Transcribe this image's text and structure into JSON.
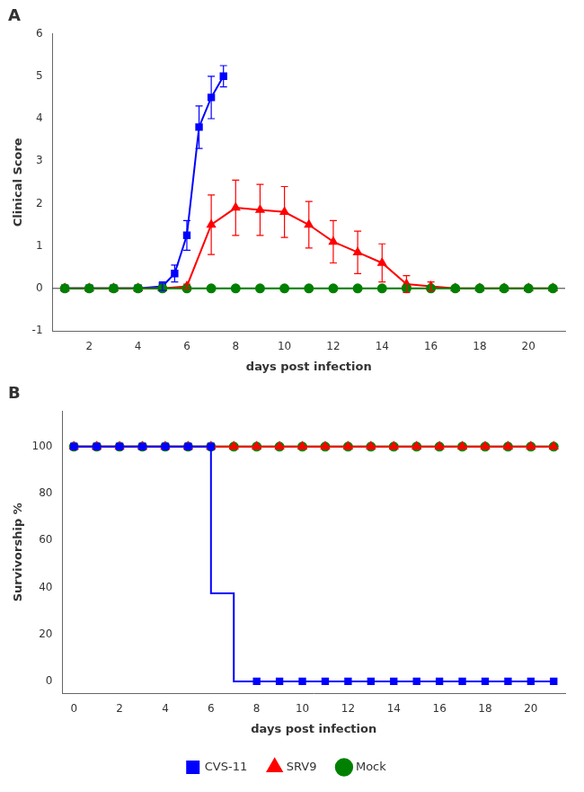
{
  "chart_data": [
    {
      "type": "line",
      "title": "A",
      "x_label": "days post infection",
      "y_label": "Clinical Score",
      "xlim": [
        0.5,
        21.5
      ],
      "ylim": [
        -1,
        6
      ],
      "xticks": [
        2,
        4,
        6,
        8,
        10,
        12,
        14,
        16,
        18,
        20
      ],
      "yticks": [
        -1,
        0,
        1,
        2,
        3,
        4,
        5,
        6
      ],
      "grid": false,
      "hlines": [
        {
          "y": 0,
          "color": "#000000"
        }
      ],
      "series": [
        {
          "name": "Mock",
          "color": "#008000",
          "marker": "circle",
          "x": [
            1,
            2,
            3,
            4,
            5,
            6,
            7,
            8,
            9,
            10,
            11,
            12,
            13,
            14,
            15,
            16,
            17,
            18,
            19,
            20,
            21
          ],
          "values": [
            0,
            0,
            0,
            0,
            0,
            0,
            0,
            0,
            0,
            0,
            0,
            0,
            0,
            0,
            0,
            0,
            0,
            0,
            0,
            0,
            0
          ],
          "yerr": [
            0,
            0,
            0,
            0,
            0,
            0,
            0,
            0,
            0,
            0,
            0,
            0,
            0,
            0,
            0,
            0,
            0,
            0,
            0,
            0,
            0
          ]
        },
        {
          "name": "SRV9",
          "color": "#ff0000",
          "marker": "triangle",
          "x": [
            1,
            2,
            3,
            4,
            5,
            6,
            7,
            8,
            9,
            10,
            11,
            12,
            13,
            14,
            15,
            16,
            17,
            18,
            19,
            20,
            21
          ],
          "values": [
            0,
            0,
            0,
            0,
            0,
            0.05,
            1.5,
            1.9,
            1.85,
            1.8,
            1.5,
            1.1,
            0.85,
            0.6,
            0.1,
            0.05,
            0,
            0,
            0,
            0,
            0
          ],
          "yerr": [
            0,
            0,
            0,
            0,
            0,
            0.05,
            0.7,
            0.65,
            0.6,
            0.6,
            0.55,
            0.5,
            0.5,
            0.45,
            0.2,
            0.1,
            0,
            0,
            0,
            0,
            0
          ]
        },
        {
          "name": "CVS-11",
          "color": "#0000ff",
          "marker": "square",
          "x": [
            1,
            2,
            3,
            4,
            5,
            5.5,
            6,
            6.5,
            7,
            7.5
          ],
          "values": [
            0,
            0,
            0,
            0,
            0.05,
            0.35,
            1.25,
            3.8,
            4.5,
            5.0
          ],
          "yerr": [
            0,
            0,
            0,
            0,
            0.1,
            0.2,
            0.35,
            0.5,
            0.5,
            0.25
          ]
        }
      ]
    },
    {
      "type": "line",
      "title": "B",
      "x_label": "days post infection",
      "y_label": "Survivorship %",
      "xlim": [
        -0.5,
        21.5
      ],
      "ylim": [
        -5,
        115
      ],
      "xticks": [
        0,
        2,
        4,
        6,
        8,
        10,
        12,
        14,
        16,
        18,
        20
      ],
      "yticks": [
        0,
        20,
        40,
        60,
        80,
        100
      ],
      "grid": false,
      "legend": "bottom",
      "series": [
        {
          "name": "CVS-11",
          "color": "#0000ff",
          "marker": "square",
          "step_x": [
            0,
            6,
            6,
            7,
            7,
            21
          ],
          "step_values": [
            100,
            100,
            37.5,
            37.5,
            0,
            0
          ],
          "x": [
            0,
            1,
            2,
            3,
            4,
            5,
            6,
            8,
            9,
            10,
            11,
            12,
            13,
            14,
            15,
            16,
            17,
            18,
            19,
            20,
            21
          ],
          "values": [
            100,
            100,
            100,
            100,
            100,
            100,
            100,
            0,
            0,
            0,
            0,
            0,
            0,
            0,
            0,
            0,
            0,
            0,
            0,
            0,
            0
          ]
        },
        {
          "name": "SRV9",
          "color": "#ff0000",
          "marker": "triangle",
          "x": [
            0,
            1,
            2,
            3,
            4,
            5,
            6,
            7,
            8,
            9,
            10,
            11,
            12,
            13,
            14,
            15,
            16,
            17,
            18,
            19,
            20,
            21
          ],
          "values": [
            100,
            100,
            100,
            100,
            100,
            100,
            100,
            100,
            100,
            100,
            100,
            100,
            100,
            100,
            100,
            100,
            100,
            100,
            100,
            100,
            100,
            100
          ]
        },
        {
          "name": "Mock",
          "color": "#008000",
          "marker": "circle",
          "x": [
            0,
            1,
            2,
            3,
            4,
            5,
            6,
            7,
            8,
            9,
            10,
            11,
            12,
            13,
            14,
            15,
            16,
            17,
            18,
            19,
            20,
            21
          ],
          "values": [
            100,
            100,
            100,
            100,
            100,
            100,
            100,
            100,
            100,
            100,
            100,
            100,
            100,
            100,
            100,
            100,
            100,
            100,
            100,
            100,
            100,
            100
          ]
        }
      ]
    }
  ]
}
